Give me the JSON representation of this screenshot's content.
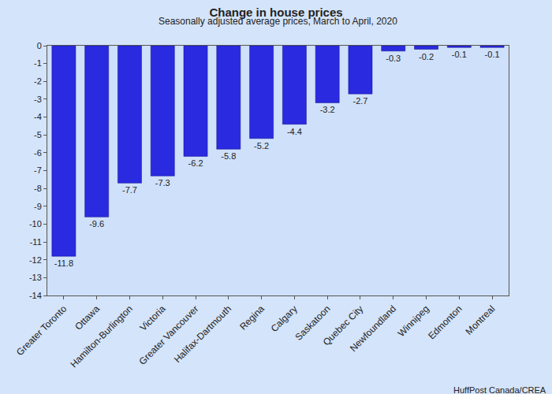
{
  "chart_data": {
    "type": "bar",
    "title": "Change in house prices",
    "subtitle": "Seasonally adjusted average prices, March to April, 2020",
    "source": "HuffPost Canada/CREA",
    "categories": [
      "Greater Toronto",
      "Ottawa",
      "Hamilton-Burlington",
      "Victoria",
      "Greater Vancouver",
      "Halifax-Dartmouth",
      "Regina",
      "Calgary",
      "Saskatoon",
      "Quebec City",
      "Newfoundland",
      "Winnipeg",
      "Edmonton",
      "Montreal"
    ],
    "values": [
      -11.8,
      -9.6,
      -7.7,
      -7.3,
      -6.2,
      -5.8,
      -5.2,
      -4.4,
      -3.2,
      -2.7,
      -0.3,
      -0.2,
      -0.1,
      -0.1
    ],
    "color": "#2a2ae0",
    "ylim": [
      -14,
      0
    ],
    "yticks": [
      0,
      -1,
      -2,
      -3,
      -4,
      -5,
      -6,
      -7,
      -8,
      -9,
      -10,
      -11,
      -12,
      -13,
      -14
    ],
    "grid": false,
    "data_labels": true
  }
}
